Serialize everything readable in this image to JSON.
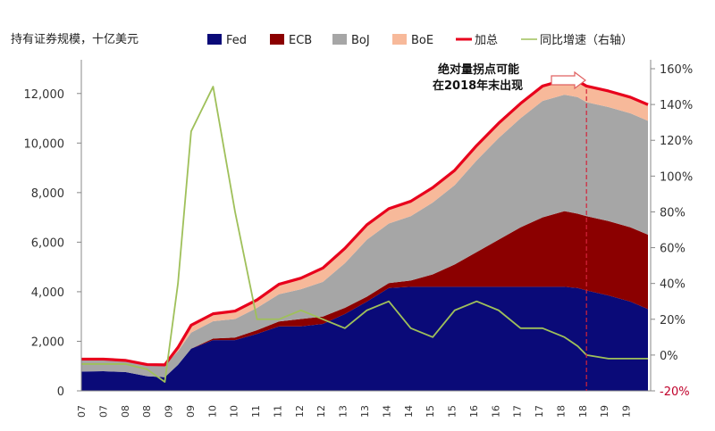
{
  "chart_data": {
    "type": "area",
    "title": "持有证券规模，十亿美元",
    "y_left": {
      "ylim": [
        0,
        13000
      ],
      "ticks": [
        0,
        2000,
        4000,
        6000,
        8000,
        10000,
        12000
      ],
      "tick_labels": [
        "0",
        "2,000",
        "4,000",
        "6,000",
        "8,000",
        "10,000",
        "12,000"
      ]
    },
    "y_right": {
      "ylim": [
        -20,
        160
      ],
      "ticks": [
        -20,
        0,
        20,
        40,
        60,
        80,
        100,
        120,
        140,
        160
      ],
      "tick_labels": [
        "-20%",
        "0%",
        "20%",
        "40%",
        "60%",
        "80%",
        "100%",
        "120%",
        "140%",
        "160%"
      ]
    },
    "x_tick_labels": [
      "07",
      "07",
      "08",
      "08",
      "09",
      "09",
      "10",
      "10",
      "11",
      "11",
      "12",
      "12",
      "13",
      "13",
      "14",
      "14",
      "15",
      "15",
      "16",
      "16",
      "17",
      "17",
      "18",
      "18",
      "19",
      "19"
    ],
    "x": [
      2007.0,
      2007.5,
      2008.0,
      2008.5,
      2008.9,
      2009.2,
      2009.5,
      2010.0,
      2010.5,
      2011.0,
      2011.5,
      2012.0,
      2012.5,
      2013.0,
      2013.5,
      2014.0,
      2014.5,
      2015.0,
      2015.5,
      2016.0,
      2016.5,
      2017.0,
      2017.5,
      2018.0,
      2018.3,
      2018.5,
      2019.0,
      2019.5,
      2019.9
    ],
    "series": [
      {
        "name": "Fed",
        "color": "#0a0a78",
        "values": [
          780,
          790,
          760,
          590,
          550,
          1050,
          1700,
          2050,
          2050,
          2300,
          2600,
          2600,
          2700,
          3100,
          3600,
          4150,
          4200,
          4200,
          4200,
          4200,
          4200,
          4200,
          4200,
          4200,
          4150,
          4050,
          3850,
          3600,
          3300
        ]
      },
      {
        "name": "ECB",
        "color": "#8b0000",
        "values": [
          0,
          0,
          0,
          0,
          0,
          0,
          0,
          60,
          100,
          150,
          200,
          300,
          300,
          250,
          200,
          200,
          250,
          500,
          900,
          1400,
          1900,
          2400,
          2800,
          3050,
          3000,
          3000,
          3000,
          3000,
          3000
        ]
      },
      {
        "name": "BoJ",
        "color": "#a6a6a6",
        "values": [
          500,
          490,
          470,
          470,
          500,
          550,
          650,
          700,
          750,
          900,
          1100,
          1200,
          1400,
          1800,
          2300,
          2400,
          2600,
          2900,
          3200,
          3700,
          4100,
          4400,
          4700,
          4700,
          4700,
          4600,
          4600,
          4600,
          4600
        ]
      },
      {
        "name": "BoE",
        "color": "#f7b99a",
        "values": [
          0,
          0,
          0,
          0,
          0,
          150,
          300,
          300,
          320,
          320,
          400,
          450,
          560,
          600,
          600,
          600,
          600,
          600,
          600,
          600,
          600,
          600,
          600,
          600,
          650,
          650,
          650,
          650,
          650
        ]
      },
      {
        "name": "加总",
        "color": "#e8001c",
        "values": [
          1280,
          1280,
          1230,
          1060,
          1050,
          1750,
          2650,
          3110,
          3220,
          3670,
          4300,
          4550,
          4960,
          5750,
          6700,
          7350,
          7650,
          8200,
          8900,
          9900,
          10800,
          11600,
          12300,
          12550,
          12500,
          12300,
          12100,
          11850,
          11550
        ]
      },
      {
        "name": "同比增速（右轴）",
        "color": "#9fc05a",
        "axis": "right",
        "values": [
          -5,
          -5,
          -5,
          -8,
          -15,
          40,
          125,
          150,
          80,
          20,
          20,
          25,
          20,
          15,
          25,
          30,
          15,
          10,
          25,
          30,
          25,
          15,
          15,
          10,
          5,
          0,
          -2,
          -2,
          -2
        ]
      }
    ],
    "annotation": {
      "text_line1": "绝对量拐点可能",
      "text_line2": "在2018年末出现",
      "x_marker": 2018.5
    }
  }
}
